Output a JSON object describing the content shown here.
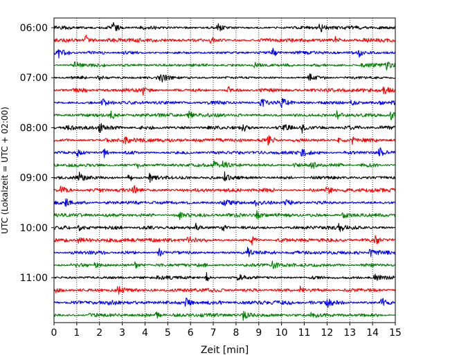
{
  "chart_data": {
    "type": "line",
    "title": "",
    "xlabel": "Zeit  [min]",
    "ylabel": "UTC (Lokalzeit = UTC + 02:00)",
    "xlim": [
      0,
      15
    ],
    "x_ticks": [
      "0",
      "1",
      "2",
      "3",
      "4",
      "5",
      "6",
      "7",
      "8",
      "9",
      "10",
      "11",
      "12",
      "13",
      "14",
      "15"
    ],
    "y_ticks": [
      "06:00",
      "07:00",
      "08:00",
      "09:00",
      "10:00",
      "11:00"
    ],
    "grid": "x-dotted",
    "trace_interval_min": 15,
    "trace_colors": [
      "#000000",
      "#ff0000",
      "#0000ff",
      "#008000"
    ],
    "traces": [
      {
        "start": "06:00",
        "color": "#000000",
        "events_min": [
          2.6,
          7.2,
          11.7
        ]
      },
      {
        "start": "06:15",
        "color": "#ff0000",
        "events_min": [
          1.4,
          6.9,
          12.3
        ]
      },
      {
        "start": "06:30",
        "color": "#0000ff",
        "events_min": [
          0.2,
          9.6,
          13.4
        ]
      },
      {
        "start": "06:45",
        "color": "#008000",
        "events_min": [
          0.9,
          8.8,
          14.6
        ]
      },
      {
        "start": "07:00",
        "color": "#000000",
        "events_min": [
          1.9,
          4.7,
          11.2
        ]
      },
      {
        "start": "07:15",
        "color": "#ff0000",
        "events_min": [
          3.9,
          7.6,
          14.5
        ]
      },
      {
        "start": "07:30",
        "color": "#0000ff",
        "events_min": [
          2.1,
          9.1,
          10.0,
          13.1
        ]
      },
      {
        "start": "07:45",
        "color": "#008000",
        "events_min": [
          2.5,
          5.9,
          12.4,
          14.8
        ]
      },
      {
        "start": "08:00",
        "color": "#000000",
        "events_min": [
          0.5,
          2.0,
          8.3,
          10.1,
          10.9
        ]
      },
      {
        "start": "08:15",
        "color": "#ff0000",
        "events_min": [
          3.1,
          9.4,
          12.5,
          13.1
        ]
      },
      {
        "start": "08:30",
        "color": "#0000ff",
        "events_min": [
          1.0,
          2.2,
          10.9,
          14.3
        ]
      },
      {
        "start": "08:45",
        "color": "#008000",
        "events_min": [
          3.6,
          7.0,
          7.4,
          11.3
        ]
      },
      {
        "start": "09:00",
        "color": "#000000",
        "events_min": [
          1.1,
          3.3,
          4.2,
          7.5
        ]
      },
      {
        "start": "09:15",
        "color": "#ff0000",
        "events_min": [
          0.3,
          3.5,
          12.0
        ]
      },
      {
        "start": "09:30",
        "color": "#0000ff",
        "events_min": [
          0.5,
          7.4,
          8.8,
          10.2
        ]
      },
      {
        "start": "09:45",
        "color": "#008000",
        "events_min": [
          5.5,
          8.9,
          12.7
        ]
      },
      {
        "start": "10:00",
        "color": "#000000",
        "events_min": [
          1.1,
          6.2,
          7.4,
          12.5
        ]
      },
      {
        "start": "10:15",
        "color": "#ff0000",
        "events_min": [
          1.1,
          5.9,
          8.7,
          14.1
        ]
      },
      {
        "start": "10:30",
        "color": "#0000ff",
        "events_min": [
          4.6,
          8.5,
          13.9
        ]
      },
      {
        "start": "10:45",
        "color": "#008000",
        "events_min": [
          1.8,
          3.6,
          9.6
        ]
      },
      {
        "start": "11:00",
        "color": "#000000",
        "events_min": [
          6.7,
          8.1,
          14.1
        ]
      },
      {
        "start": "11:15",
        "color": "#ff0000",
        "events_min": [
          0.1,
          2.8,
          10.8
        ]
      },
      {
        "start": "11:30",
        "color": "#0000ff",
        "events_min": [
          2.4,
          5.8,
          12.0,
          14.4
        ]
      },
      {
        "start": "11:45",
        "color": "#008000",
        "events_min": [
          4.5,
          8.3,
          11.3
        ]
      }
    ]
  }
}
